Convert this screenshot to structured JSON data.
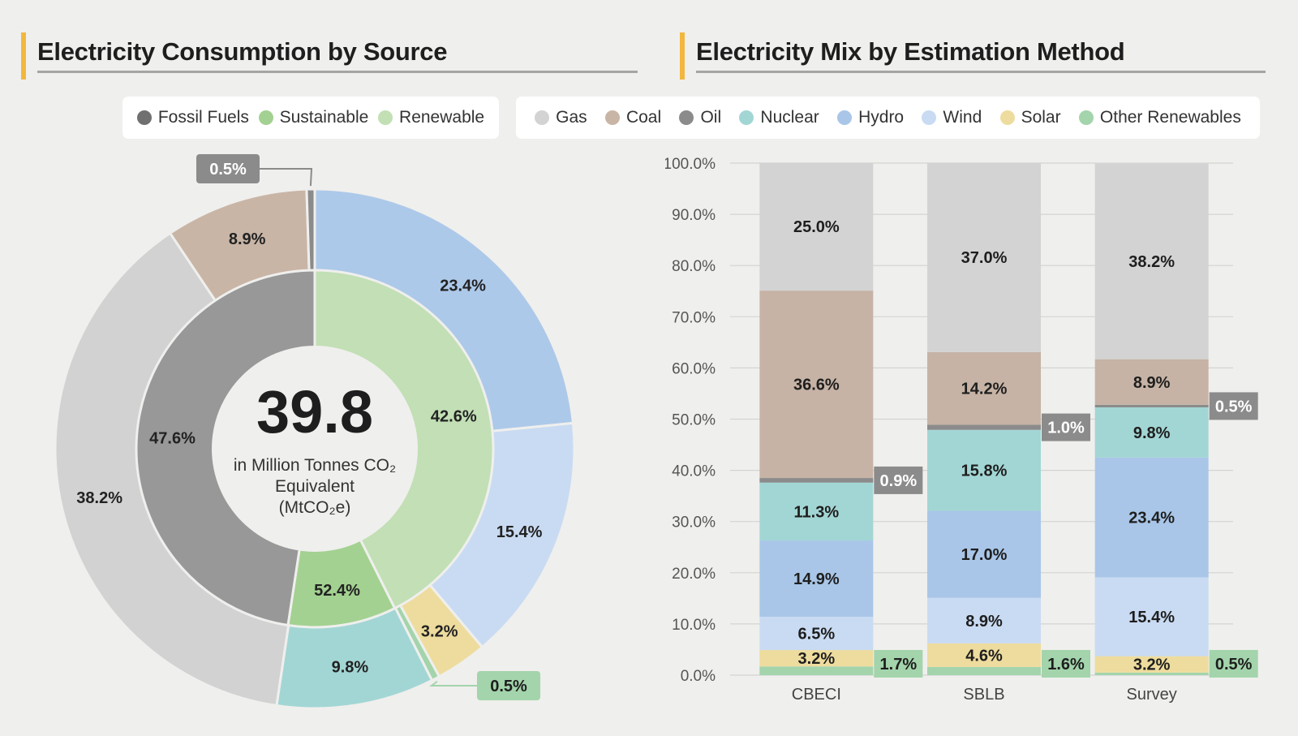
{
  "left_panel": {
    "title": "Electricity Consumption by Source",
    "legend": [
      {
        "label": "Fossil Fuels",
        "color": "#707070"
      },
      {
        "label": "Sustainable",
        "color": "#a3d191"
      },
      {
        "label": "Renewable",
        "color": "#c2e0b4"
      }
    ]
  },
  "right_panel": {
    "title": "Electricity Mix by Estimation Method",
    "legend": [
      {
        "label": "Gas",
        "color": "#d3d3d3"
      },
      {
        "label": "Coal",
        "color": "#c9b5a6"
      },
      {
        "label": "Oil",
        "color": "#8b8b8b"
      },
      {
        "label": "Nuclear",
        "color": "#a2d6d4"
      },
      {
        "label": "Hydro",
        "color": "#a9c6e8"
      },
      {
        "label": "Wind",
        "color": "#c9dbf2"
      },
      {
        "label": "Solar",
        "color": "#eedc9e"
      },
      {
        "label": "Other Renewables",
        "color": "#a3d4ab"
      }
    ]
  },
  "chart_data": [
    {
      "type": "pie",
      "subtype": "nested-donut",
      "center_value": "39.8",
      "center_label_lines": [
        "in Million Tonnes CO₂",
        "Equivalent",
        "(MtCO₂e)"
      ],
      "inner_ring": [
        {
          "label": "42.6%",
          "value": 42.6,
          "color": "#c2dfb5"
        },
        {
          "label": "52.4%",
          "value": 9.8,
          "color": "#a3d191"
        },
        {
          "label": "47.6%",
          "value": 47.6,
          "color": "#989898"
        }
      ],
      "outer_ring": [
        {
          "label": "23.4%",
          "value": 23.4,
          "color": "#adc9e9"
        },
        {
          "label": "15.4%",
          "value": 15.4,
          "color": "#c9dbf2"
        },
        {
          "label": "3.2%",
          "value": 3.2,
          "color": "#eedc9e"
        },
        {
          "label": "0.5%",
          "value": 0.5,
          "color": "#a3d4ab"
        },
        {
          "label": "9.8%",
          "value": 9.8,
          "color": "#a2d6d4"
        },
        {
          "label": "38.2%",
          "value": 38.2,
          "color": "#d2d2d2"
        },
        {
          "label": "8.9%",
          "value": 8.9,
          "color": "#c9b5a6"
        },
        {
          "label": "0.5%",
          "value": 0.5,
          "color": "#8b8b8b"
        }
      ]
    },
    {
      "type": "bar",
      "subtype": "stacked",
      "categories": [
        "CBECI",
        "SBLB",
        "Survey"
      ],
      "ylim": [
        0,
        100
      ],
      "yticks": [
        "0.0%",
        "10.0%",
        "20.0%",
        "30.0%",
        "40.0%",
        "50.0%",
        "60.0%",
        "70.0%",
        "80.0%",
        "90.0%",
        "100.0%"
      ],
      "grid": true,
      "series": [
        {
          "name": "Other Renewables",
          "color": "#a3d4ab",
          "values": [
            1.7,
            1.6,
            0.5
          ],
          "labels": [
            "1.7%",
            "1.6%",
            "0.5%"
          ]
        },
        {
          "name": "Solar",
          "color": "#eedc9e",
          "values": [
            3.2,
            4.6,
            3.2
          ],
          "labels": [
            "3.2%",
            "4.6%",
            "3.2%"
          ]
        },
        {
          "name": "Wind",
          "color": "#c9dbf2",
          "values": [
            6.5,
            8.9,
            15.4
          ],
          "labels": [
            "6.5%",
            "8.9%",
            "15.4%"
          ]
        },
        {
          "name": "Hydro",
          "color": "#a9c6e8",
          "values": [
            14.9,
            17.0,
            23.4
          ],
          "labels": [
            "14.9%",
            "17.0%",
            "23.4%"
          ]
        },
        {
          "name": "Nuclear",
          "color": "#a2d6d4",
          "values": [
            11.3,
            15.8,
            9.8
          ],
          "labels": [
            "11.3%",
            "15.8%",
            "9.8%"
          ]
        },
        {
          "name": "Oil",
          "color": "#8b8b8b",
          "values": [
            0.9,
            1.0,
            0.5
          ],
          "labels": [
            "0.9%",
            "1.0%",
            "0.5%"
          ]
        },
        {
          "name": "Coal",
          "color": "#c6b3a5",
          "values": [
            36.6,
            14.2,
            8.9
          ],
          "labels": [
            "36.6%",
            "14.2%",
            "8.9%"
          ]
        },
        {
          "name": "Gas",
          "color": "#d3d3d3",
          "values": [
            25.0,
            37.0,
            38.2
          ],
          "labels": [
            "25.0%",
            "37.0%",
            "38.2%"
          ]
        }
      ]
    }
  ]
}
